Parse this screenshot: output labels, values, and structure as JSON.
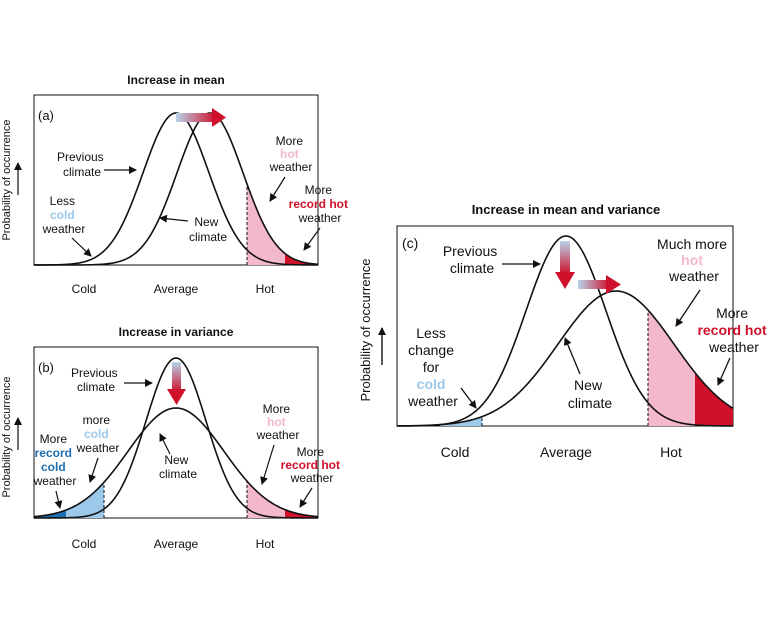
{
  "colors": {
    "cold_light": "#9cc8ea",
    "cold_dark": "#1f6fb0",
    "hot_light": "#f4b8cb",
    "hot_dark": "#d0112b",
    "curve": "#111111",
    "arrow_start": "#b8d3ea",
    "arrow_end": "#d0112b"
  },
  "panels": {
    "a": {
      "title": "Increase in mean",
      "letter": "(a)",
      "ylabel": "Probability of occurrence",
      "ticks": [
        "Cold",
        "Average",
        "Hot"
      ],
      "ann": {
        "prev1": "Previous",
        "prev2": "climate",
        "new1": "New",
        "new2": "climate",
        "less1": "Less",
        "less2": "cold",
        "less3": "weather",
        "more1": "More",
        "more2": "hot",
        "more3": "weather",
        "rec1": "More",
        "rec2": "record hot",
        "rec3": "weather"
      }
    },
    "b": {
      "title": "Increase in variance",
      "letter": "(b)",
      "ylabel": "Probability of occurrence",
      "ticks": [
        "Cold",
        "Average",
        "Hot"
      ],
      "ann": {
        "prev1": "Previous",
        "prev2": "climate",
        "new1": "New",
        "new2": "climate",
        "mc1": "more",
        "mc2": "cold",
        "mc3": "weather",
        "mrc1": "More",
        "mrc2": "record",
        "mrc3": "cold",
        "mrc4": "weather",
        "more1": "More",
        "more2": "hot",
        "more3": "weather",
        "rec1": "More",
        "rec2": "record hot",
        "rec3": "weather"
      }
    },
    "c": {
      "title": "Increase in mean and variance",
      "letter": "(c)",
      "ylabel": "Probability of occurrence",
      "ticks": [
        "Cold",
        "Average",
        "Hot"
      ],
      "ann": {
        "prev1": "Previous",
        "prev2": "climate",
        "new1": "New",
        "new2": "climate",
        "less1": "Less",
        "less2": "change",
        "less3": "for",
        "less4": "cold",
        "less5": "weather",
        "much1": "Much more",
        "much2": "hot",
        "much3": "weather",
        "rec1": "More",
        "rec2": "record hot",
        "rec3": "weather"
      }
    }
  }
}
